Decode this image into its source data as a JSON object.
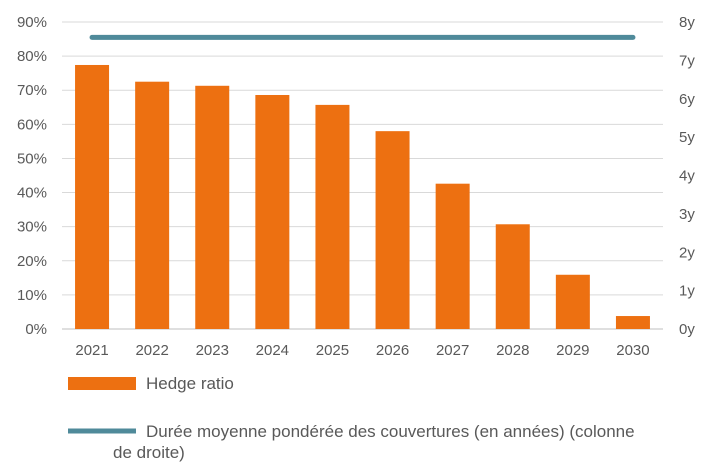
{
  "chart_data": {
    "type": "bar",
    "categories": [
      "2021",
      "2022",
      "2023",
      "2024",
      "2025",
      "2026",
      "2027",
      "2028",
      "2029",
      "2030"
    ],
    "series": [
      {
        "name": "Hedge ratio",
        "type": "bar",
        "axis": "left",
        "color": "#ED7011",
        "values": [
          77.4,
          72.5,
          71.3,
          68.6,
          65.7,
          58.0,
          42.6,
          30.7,
          15.9,
          3.8
        ]
      },
      {
        "name": "Durée moyenne pondérée des couvertures (en années) (colonne de droite)",
        "type": "line",
        "axis": "right",
        "color": "#4F8A9A",
        "values": [
          7.6,
          7.6,
          7.6,
          7.6,
          7.6,
          7.6,
          7.6,
          7.6,
          7.6,
          7.6
        ]
      }
    ],
    "y_left": {
      "range": [
        0,
        90
      ],
      "ticks": [
        0,
        10,
        20,
        30,
        40,
        50,
        60,
        70,
        80,
        90
      ],
      "tick_labels": [
        "0%",
        "10%",
        "20%",
        "30%",
        "40%",
        "50%",
        "60%",
        "70%",
        "80%",
        "90%"
      ]
    },
    "y_right": {
      "range": [
        0,
        8
      ],
      "ticks": [
        0,
        1,
        2,
        3,
        4,
        5,
        6,
        7,
        8
      ],
      "tick_labels": [
        "0y",
        "1y",
        "2y",
        "3y",
        "4y",
        "5y",
        "6y",
        "7y",
        "8y"
      ]
    },
    "grid": true,
    "legend_position": "bottom-left"
  }
}
